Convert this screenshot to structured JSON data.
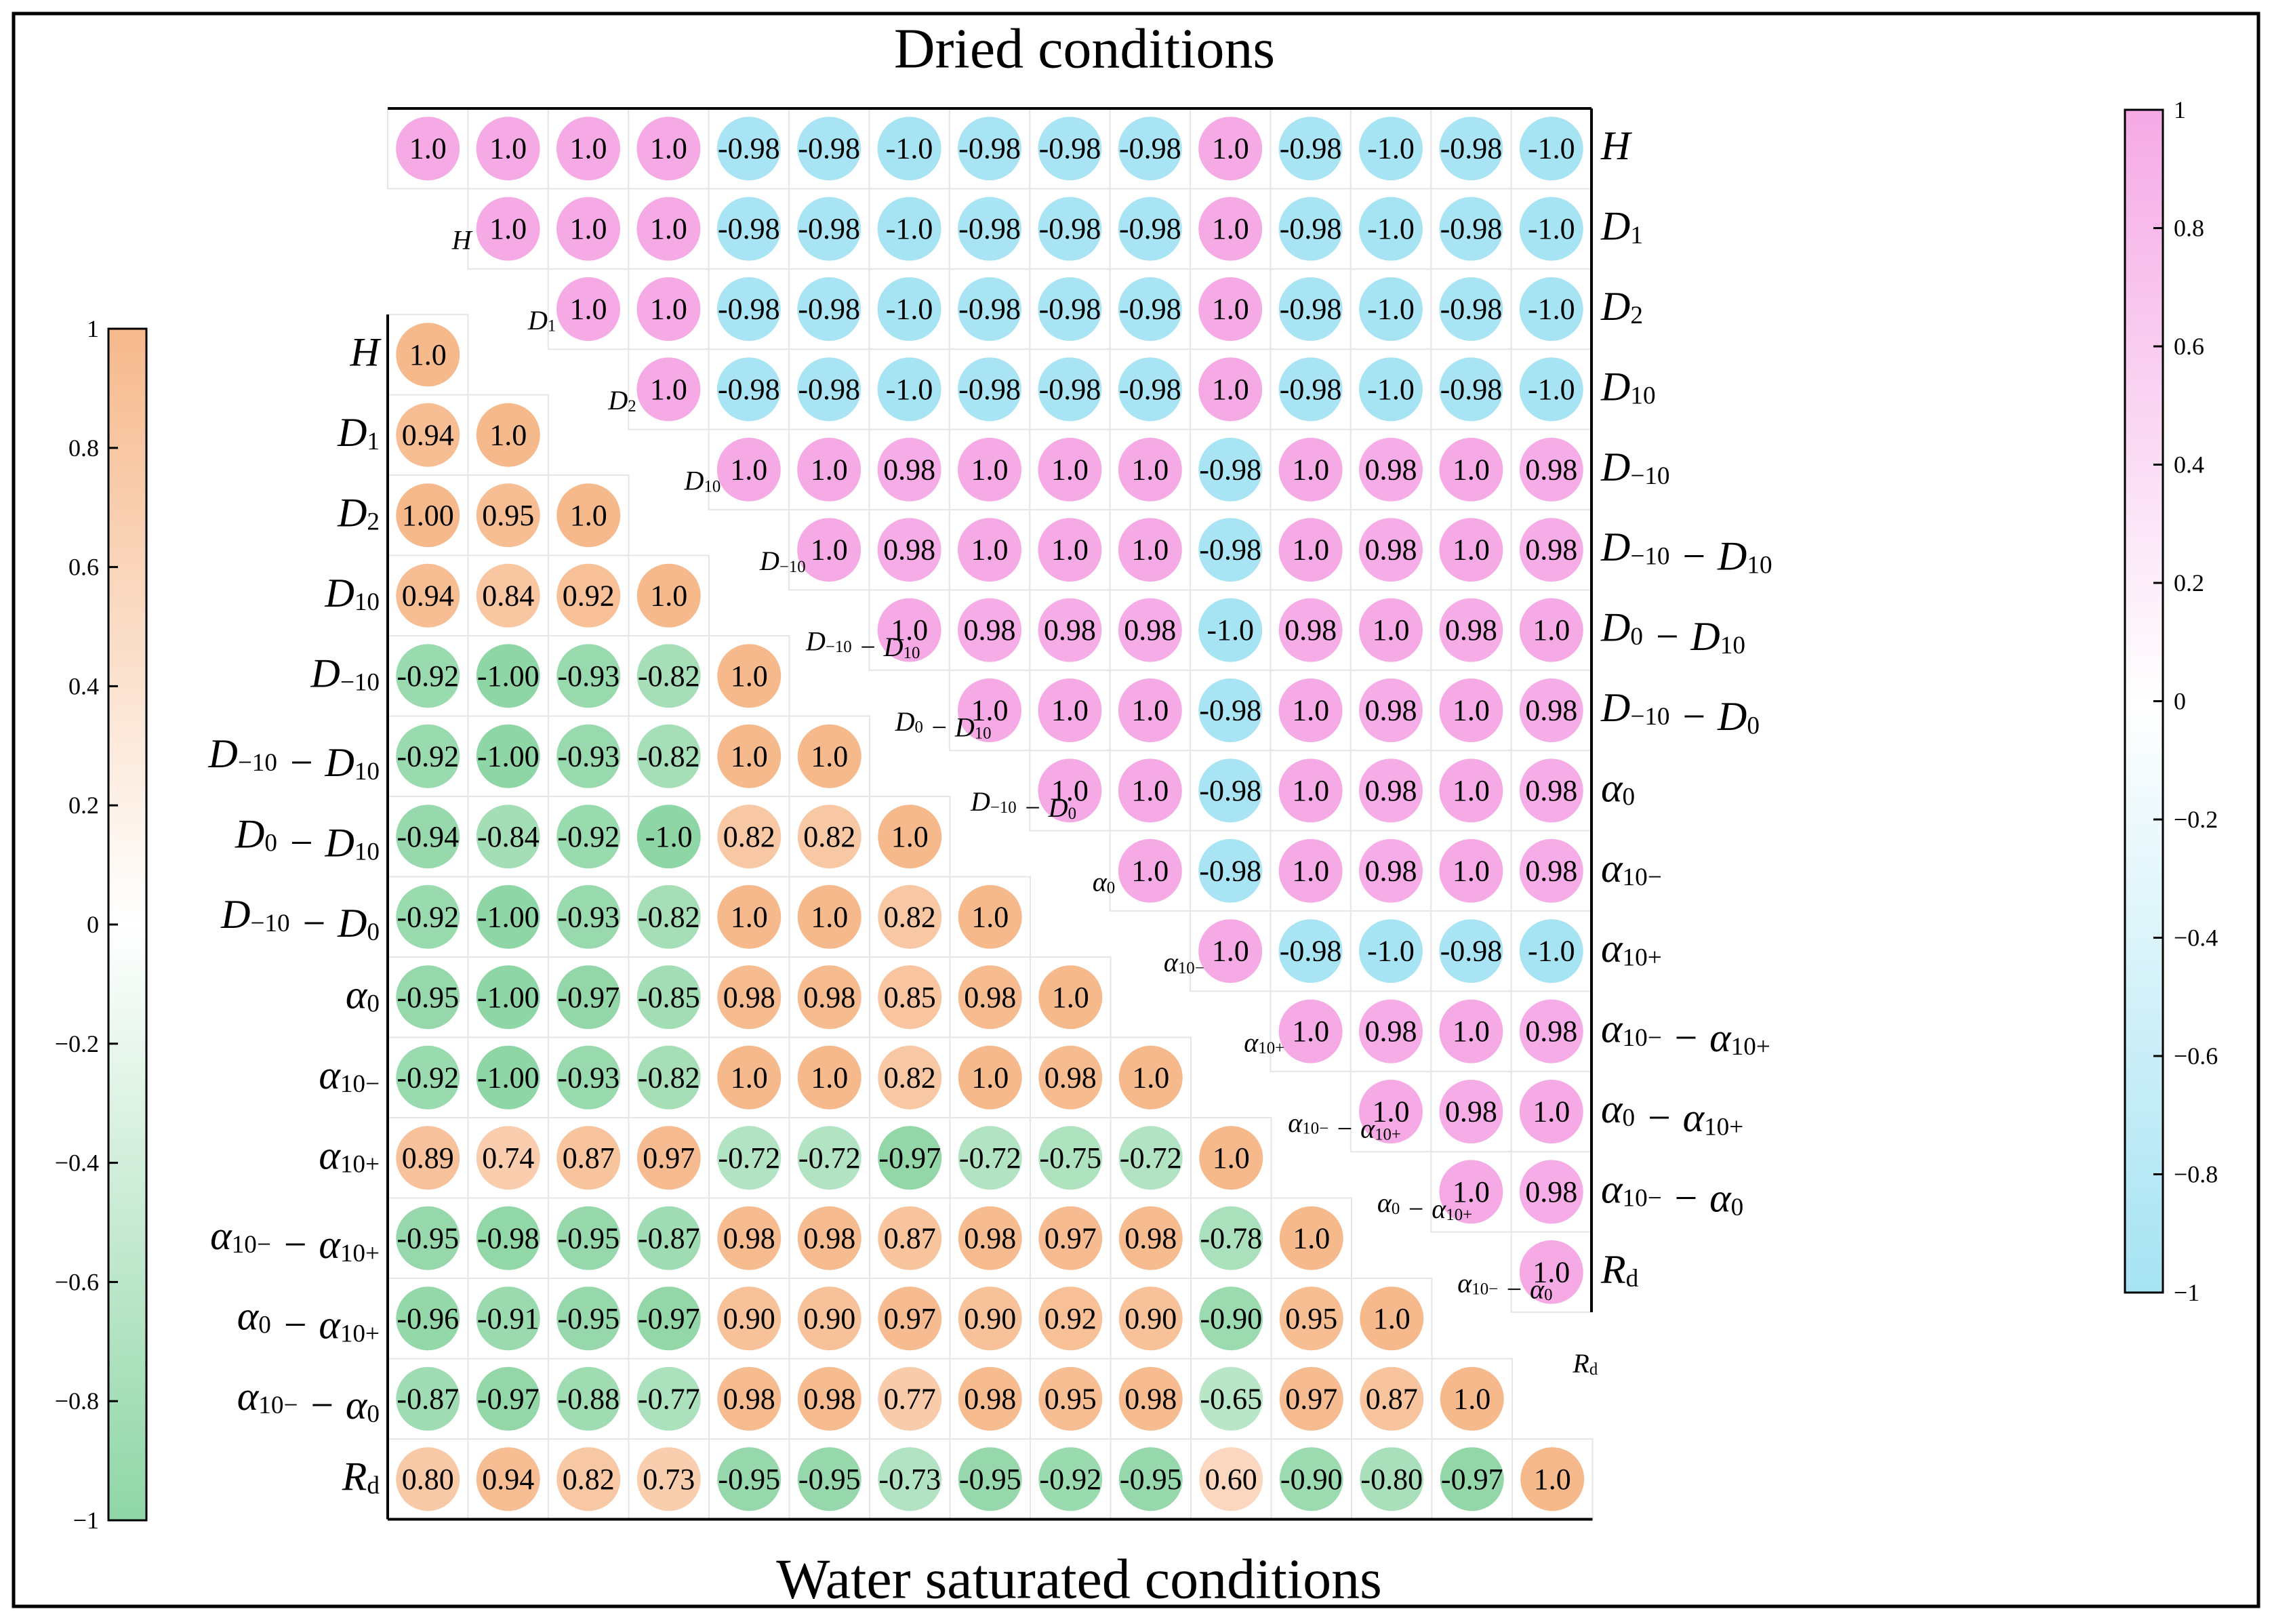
{
  "chart_data": {
    "type": "heatmap",
    "title_top": "Dried conditions",
    "title_bottom": "Water saturated conditions",
    "variables": [
      "H",
      "D1",
      "D2",
      "D10",
      "D-10",
      "D-10 - D10",
      "D0 - D10",
      "D-10 - D0",
      "α0",
      "α10-",
      "α10+",
      "α10- - α10+",
      "α0 - α10+",
      "α10- - α0",
      "Rd"
    ],
    "variable_labels": [
      {
        "parts": [
          [
            "H",
            ""
          ]
        ]
      },
      {
        "parts": [
          [
            "D",
            ""
          ],
          [
            "1",
            "sub"
          ]
        ]
      },
      {
        "parts": [
          [
            "D",
            ""
          ],
          [
            "2",
            "sub"
          ]
        ]
      },
      {
        "parts": [
          [
            "D",
            ""
          ],
          [
            "10",
            "sub"
          ]
        ]
      },
      {
        "parts": [
          [
            "D",
            ""
          ],
          [
            "−10",
            "sub"
          ]
        ]
      },
      {
        "parts": [
          [
            "D",
            ""
          ],
          [
            "−10",
            "sub"
          ],
          [
            " − D",
            ""
          ],
          [
            "10",
            "sub"
          ]
        ]
      },
      {
        "parts": [
          [
            "D",
            ""
          ],
          [
            "0",
            "sub"
          ],
          [
            " − D",
            ""
          ],
          [
            "10",
            "sub"
          ]
        ]
      },
      {
        "parts": [
          [
            "D",
            ""
          ],
          [
            "−10",
            "sub"
          ],
          [
            " − D",
            ""
          ],
          [
            "0",
            "sub"
          ]
        ]
      },
      {
        "parts": [
          [
            "α",
            ""
          ],
          [
            "0",
            "sub"
          ]
        ]
      },
      {
        "parts": [
          [
            "α",
            ""
          ],
          [
            "10−",
            "sub"
          ]
        ]
      },
      {
        "parts": [
          [
            "α",
            ""
          ],
          [
            "10+",
            "sub"
          ]
        ]
      },
      {
        "parts": [
          [
            "α",
            ""
          ],
          [
            "10−",
            "sub"
          ],
          [
            " − α",
            ""
          ],
          [
            "10+",
            "sub"
          ]
        ]
      },
      {
        "parts": [
          [
            "α",
            ""
          ],
          [
            "0",
            "sub"
          ],
          [
            " − α",
            ""
          ],
          [
            "10+",
            "sub"
          ]
        ]
      },
      {
        "parts": [
          [
            "α",
            ""
          ],
          [
            "10−",
            "sub"
          ],
          [
            " − α",
            ""
          ],
          [
            "0",
            "sub"
          ]
        ]
      },
      {
        "parts": [
          [
            "R",
            ""
          ],
          [
            "d",
            "sub"
          ]
        ]
      }
    ],
    "dried_upper": [
      [
        "1.0",
        "1.0",
        "1.0",
        "1.0",
        "-0.98",
        "-0.98",
        "-1.0",
        "-0.98",
        "-0.98",
        "-0.98",
        "1.0",
        "-0.98",
        "-1.0",
        "-0.98",
        "-1.0"
      ],
      [
        "1.0",
        "1.0",
        "1.0",
        "-0.98",
        "-0.98",
        "-1.0",
        "-0.98",
        "-0.98",
        "-0.98",
        "1.0",
        "-0.98",
        "-1.0",
        "-0.98",
        "-1.0"
      ],
      [
        "1.0",
        "1.0",
        "-0.98",
        "-0.98",
        "-1.0",
        "-0.98",
        "-0.98",
        "-0.98",
        "1.0",
        "-0.98",
        "-1.0",
        "-0.98",
        "-1.0"
      ],
      [
        "1.0",
        "-0.98",
        "-0.98",
        "-1.0",
        "-0.98",
        "-0.98",
        "-0.98",
        "1.0",
        "-0.98",
        "-1.0",
        "-0.98",
        "-1.0"
      ],
      [
        "1.0",
        "1.0",
        "0.98",
        "1.0",
        "1.0",
        "1.0",
        "-0.98",
        "1.0",
        "0.98",
        "1.0",
        "0.98"
      ],
      [
        "1.0",
        "0.98",
        "1.0",
        "1.0",
        "1.0",
        "-0.98",
        "1.0",
        "0.98",
        "1.0",
        "0.98"
      ],
      [
        "1.0",
        "0.98",
        "0.98",
        "0.98",
        "-1.0",
        "0.98",
        "1.0",
        "0.98",
        "1.0"
      ],
      [
        "1.0",
        "1.0",
        "1.0",
        "-0.98",
        "1.0",
        "0.98",
        "1.0",
        "0.98"
      ],
      [
        "1.0",
        "1.0",
        "-0.98",
        "1.0",
        "0.98",
        "1.0",
        "0.98"
      ],
      [
        "1.0",
        "-0.98",
        "1.0",
        "0.98",
        "1.0",
        "0.98"
      ],
      [
        "1.0",
        "-0.98",
        "-1.0",
        "-0.98",
        "-1.0"
      ],
      [
        "1.0",
        "0.98",
        "1.0",
        "0.98"
      ],
      [
        "1.0",
        "0.98",
        "1.0"
      ],
      [
        "1.0",
        "0.98"
      ],
      [
        "1.0"
      ]
    ],
    "saturated_lower": [
      [
        "1.0"
      ],
      [
        "0.94",
        "1.0"
      ],
      [
        "1.00",
        "0.95",
        "1.0"
      ],
      [
        "0.94",
        "0.84",
        "0.92",
        "1.0"
      ],
      [
        "-0.92",
        "-1.00",
        "-0.93",
        "-0.82",
        "1.0"
      ],
      [
        "-0.92",
        "-1.00",
        "-0.93",
        "-0.82",
        "1.0",
        "1.0"
      ],
      [
        "-0.94",
        "-0.84",
        "-0.92",
        "-1.0",
        "0.82",
        "0.82",
        "1.0"
      ],
      [
        "-0.92",
        "-1.00",
        "-0.93",
        "-0.82",
        "1.0",
        "1.0",
        "0.82",
        "1.0"
      ],
      [
        "-0.95",
        "-1.00",
        "-0.97",
        "-0.85",
        "0.98",
        "0.98",
        "0.85",
        "0.98",
        "1.0"
      ],
      [
        "-0.92",
        "-1.00",
        "-0.93",
        "-0.82",
        "1.0",
        "1.0",
        "0.82",
        "1.0",
        "0.98",
        "1.0"
      ],
      [
        "0.89",
        "0.74",
        "0.87",
        "0.97",
        "-0.72",
        "-0.72",
        "-0.97",
        "-0.72",
        "-0.75",
        "-0.72",
        "1.0"
      ],
      [
        "-0.95",
        "-0.98",
        "-0.95",
        "-0.87",
        "0.98",
        "0.98",
        "0.87",
        "0.98",
        "0.97",
        "0.98",
        "-0.78",
        "1.0"
      ],
      [
        "-0.96",
        "-0.91",
        "-0.95",
        "-0.97",
        "0.90",
        "0.90",
        "0.97",
        "0.90",
        "0.92",
        "0.90",
        "-0.90",
        "0.95",
        "1.0"
      ],
      [
        "-0.87",
        "-0.97",
        "-0.88",
        "-0.77",
        "0.98",
        "0.98",
        "0.77",
        "0.98",
        "0.95",
        "0.98",
        "-0.65",
        "0.97",
        "0.87",
        "1.0"
      ],
      [
        "0.80",
        "0.94",
        "0.82",
        "0.73",
        "-0.95",
        "-0.95",
        "-0.73",
        "-0.95",
        "-0.92",
        "-0.95",
        "0.60",
        "-0.90",
        "-0.80",
        "-0.97",
        "1.0"
      ]
    ],
    "colorbar_left": {
      "range": [
        -1,
        1
      ],
      "ticks": [
        "1",
        "0.8",
        "0.6",
        "0.4",
        "0.2",
        "0",
        "−0.2",
        "−0.4",
        "−0.6",
        "−0.8",
        "−1"
      ],
      "colors": {
        "positive": "#f6b98c",
        "negative": "#8fd6a6"
      }
    },
    "colorbar_right": {
      "range": [
        -1,
        1
      ],
      "ticks": [
        "1",
        "0.8",
        "0.6",
        "0.4",
        "0.2",
        "0",
        "−0.2",
        "−0.4",
        "−0.6",
        "−0.8",
        "−1"
      ],
      "colors": {
        "positive": "#f5aae6",
        "negative": "#a6e3f3"
      }
    }
  }
}
